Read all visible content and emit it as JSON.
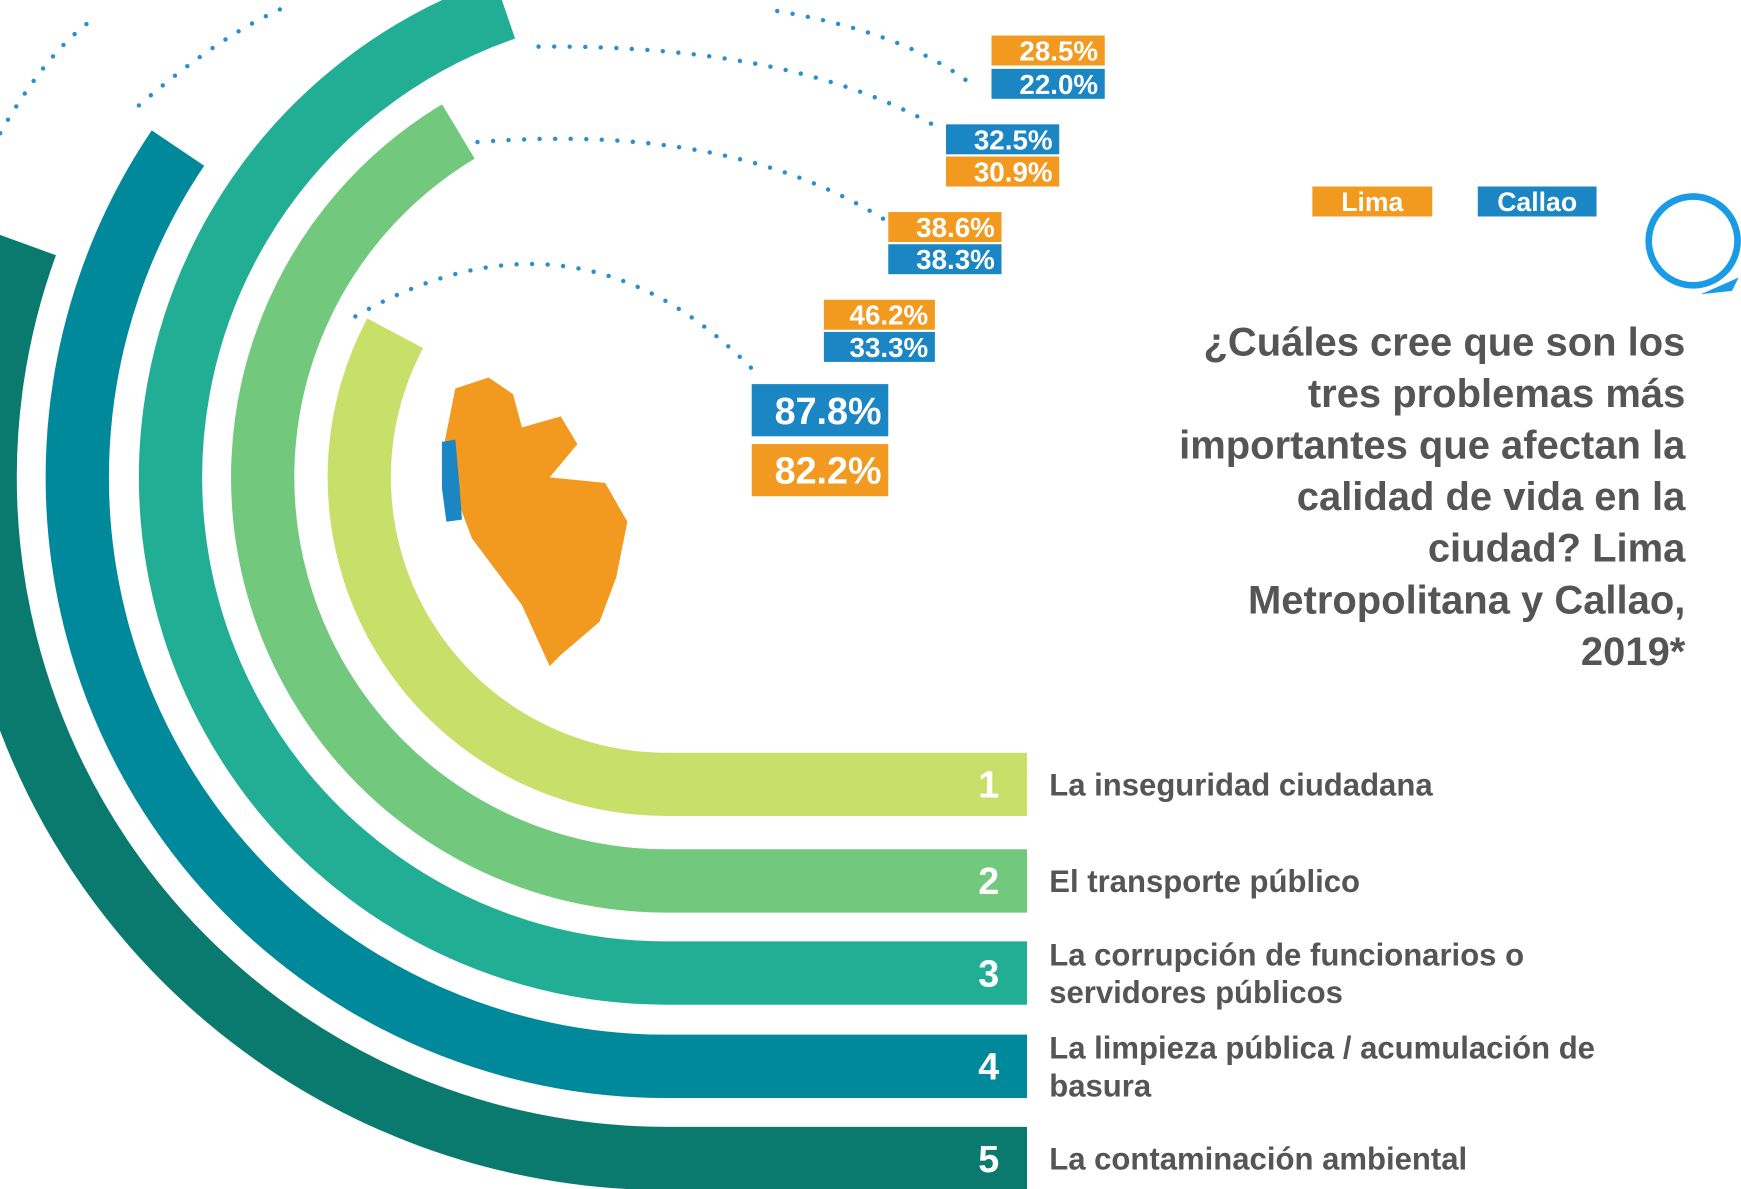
{
  "legend": [
    {
      "label": "Lima",
      "color": "#f29a1f"
    },
    {
      "label": "Callao",
      "color": "#1a86c4"
    }
  ],
  "title_lines": [
    "¿Cuáles cree que son los",
    "tres problemas más",
    "importantes que afectan la",
    "calidad de vida en la",
    "ciudad? Lima",
    "Metropolitana y Callao,",
    "2019*"
  ],
  "items": [
    {
      "rank": "1",
      "label_lines": [
        "La inseguridad ciudadana"
      ],
      "color": "#c8df6a",
      "percentages": [
        {
          "text": "87.8%",
          "color": "#1a86c4"
        },
        {
          "text": "82.2%",
          "color": "#f29a1f"
        }
      ]
    },
    {
      "rank": "2",
      "label_lines": [
        "El transporte público"
      ],
      "color": "#72c97e",
      "percentages": [
        {
          "text": "46.2%",
          "color": "#f29a1f"
        },
        {
          "text": "33.3%",
          "color": "#1a86c4"
        }
      ]
    },
    {
      "rank": "3",
      "label_lines": [
        "La corrupción de funcionarios o",
        "servidores públicos"
      ],
      "color": "#22ae94",
      "percentages": [
        {
          "text": "38.6%",
          "color": "#f29a1f"
        },
        {
          "text": "38.3%",
          "color": "#1a86c4"
        }
      ]
    },
    {
      "rank": "4",
      "label_lines": [
        "La limpieza pública / acumulación de",
        "basura"
      ],
      "color": "#00899a",
      "percentages": [
        {
          "text": "32.5%",
          "color": "#1a86c4"
        },
        {
          "text": "30.9%",
          "color": "#f29a1f"
        }
      ]
    },
    {
      "rank": "5",
      "label_lines": [
        "La contaminación ambiental"
      ],
      "color": "#0b7a6e",
      "percentages": [
        {
          "text": "28.5%",
          "color": "#f29a1f"
        },
        {
          "text": "22.0%",
          "color": "#1a86c4"
        }
      ]
    }
  ]
}
